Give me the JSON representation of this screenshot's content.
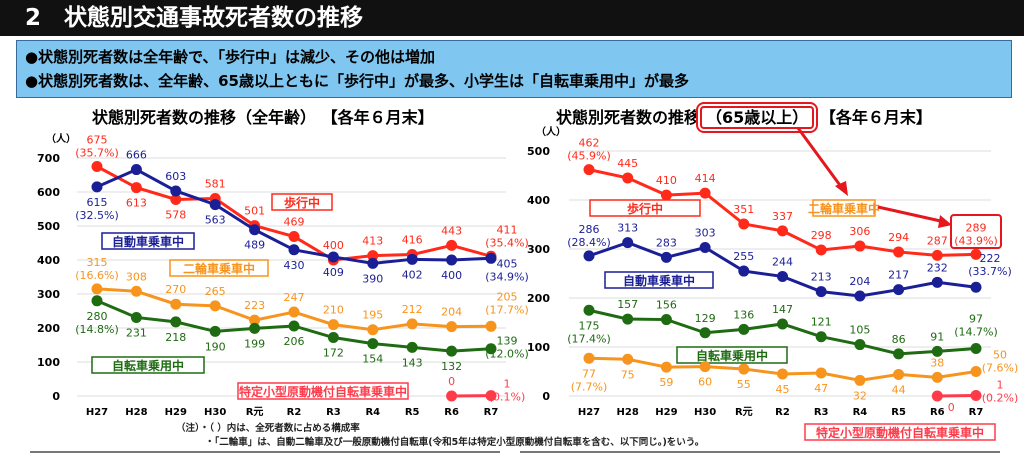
{
  "header": {
    "title": "2　状態別交通事故死者数の推移"
  },
  "summary": [
    "●状態別死者数は全年齢で、「歩行中」は減少、その他は増加",
    "●状態別死者数は、全年齢、65歳以上ともに「歩行中」が最多、小学生は「自転車乗用中」が最多"
  ],
  "notes": [
    "（注）・（ ）内は、全死者数に占める構成率",
    "・「二輪車」は、自動二輪車及び一般原動機付自転車(令和5年は特定小型原動機付自転車を含む、以下同じ。)をいう。"
  ],
  "chart_data": [
    {
      "type": "line",
      "title_pre": "状態別死者数の推移",
      "title_mid": "（全年齢）",
      "title_post": "【各年６月末】",
      "ylabel": "（人）",
      "ylim": [
        0,
        700
      ],
      "yticks": [
        0,
        100,
        200,
        300,
        400,
        500,
        600,
        700
      ],
      "grid": true,
      "categories": [
        "H27",
        "H28",
        "H29",
        "H30",
        "R元",
        "R2",
        "R3",
        "R4",
        "R5",
        "R6",
        "R7"
      ],
      "series": [
        {
          "name": "歩行中",
          "color": "#ff2a1a",
          "values": [
            675,
            613,
            578,
            581,
            501,
            469,
            400,
            413,
            416,
            443,
            411
          ],
          "pct_first": "(35.7%)",
          "pct_last": "(35.4%)"
        },
        {
          "name": "自動車乗車中",
          "color": "#1a1f96",
          "values": [
            615,
            666,
            603,
            563,
            489,
            430,
            409,
            390,
            402,
            400,
            405
          ],
          "pct_first": "(32.5%)",
          "pct_last": "(34.9%)"
        },
        {
          "name": "二輪車乗車中",
          "color": "#f7941d",
          "values": [
            315,
            308,
            270,
            265,
            223,
            247,
            210,
            195,
            212,
            204,
            205
          ],
          "pct_first": "(16.6%)",
          "pct_last": "(17.7%)"
        },
        {
          "name": "自転車乗用中",
          "color": "#1e6b12",
          "values": [
            280,
            231,
            218,
            190,
            199,
            206,
            172,
            154,
            143,
            132,
            139
          ],
          "pct_first": "(14.8%)",
          "pct_last": "(12.0%)"
        },
        {
          "name": "特定小型原動機付自転車乗車中",
          "color": "#ff3b4a",
          "values": [
            null,
            null,
            null,
            null,
            null,
            null,
            null,
            null,
            null,
            0,
            1
          ],
          "pct_first": "",
          "pct_last": "(0.1%)"
        }
      ]
    },
    {
      "type": "line",
      "title_pre": "状態別死者数の推移",
      "title_mid": "（65歳以上）",
      "title_post": "【各年６月末】",
      "ylabel": "（人）",
      "ylim": [
        0,
        500
      ],
      "yticks": [
        0,
        100,
        200,
        300,
        400,
        500
      ],
      "grid": true,
      "categories": [
        "H27",
        "H28",
        "H29",
        "H30",
        "R元",
        "R2",
        "R3",
        "R4",
        "R5",
        "R6",
        "R7"
      ],
      "series": [
        {
          "name": "歩行中",
          "color": "#ff2a1a",
          "values": [
            462,
            445,
            410,
            414,
            351,
            337,
            298,
            306,
            294,
            287,
            289
          ],
          "pct_first": "(45.9%)",
          "pct_last": "(43.9%)"
        },
        {
          "name": "自動車乗車中",
          "color": "#1a1f96",
          "values": [
            286,
            313,
            283,
            303,
            255,
            244,
            213,
            204,
            217,
            232,
            222
          ],
          "pct_first": "(28.4%)",
          "pct_last": "(33.7%)"
        },
        {
          "name": "自転車乗用中",
          "color": "#1e6b12",
          "values": [
            175,
            157,
            156,
            129,
            136,
            147,
            121,
            105,
            86,
            91,
            97
          ],
          "pct_first": "(17.4%)",
          "pct_last": "(14.7%)"
        },
        {
          "name": "二輪車乗車中",
          "color": "#f7941d",
          "values": [
            77,
            75,
            59,
            60,
            55,
            45,
            47,
            32,
            44,
            38,
            50
          ],
          "pct_first": "(7.7%)",
          "pct_last": "(7.6%)"
        },
        {
          "name": "特定小型原動機付自転車乗車中",
          "color": "#ff3b4a",
          "values": [
            null,
            null,
            null,
            null,
            null,
            null,
            null,
            null,
            null,
            0,
            1
          ],
          "pct_first": "",
          "pct_last": "(0.2%)"
        }
      ]
    }
  ]
}
